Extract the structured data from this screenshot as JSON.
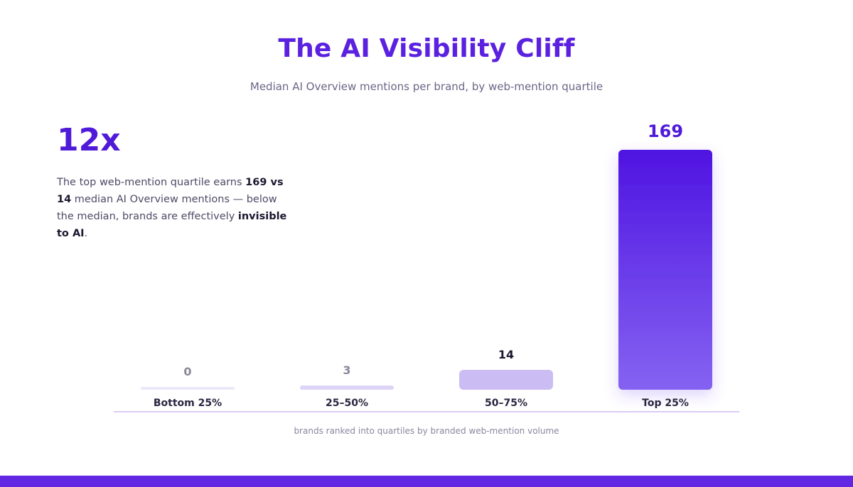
{
  "colors": {
    "accent": "#5b21e0",
    "bottom_band": "#6127e3",
    "bar_low": "#ece8f9",
    "bar_q2": "#ddd4f7",
    "bar_q3": "#cbbdf3",
    "bar_top_start": "#4f14e2",
    "bar_top_end": "#8563f1"
  },
  "header": {
    "title": "The AI Visibility Cliff",
    "subtitle": "Median AI Overview mentions per brand, by web-mention quartile"
  },
  "callout": {
    "big_stat": "12x",
    "text_1": "The top web-mention quartile earns ",
    "bold_1": "169 vs 14",
    "text_2": " median AI Overview mentions — below the median, brands are effectively ",
    "bold_2": "invisible to AI",
    "text_3": "."
  },
  "chart_data": {
    "type": "bar",
    "categories": [
      "Bottom 25%",
      "25–50%",
      "50–75%",
      "Top 25%"
    ],
    "values": [
      0,
      3,
      14,
      169
    ],
    "title": "The AI Visibility Cliff",
    "subtitle": "Median AI Overview mentions per brand, by web-mention quartile",
    "xlabel": "brands ranked into quartiles by branded web-mention volume",
    "ylabel": "",
    "ylim": [
      0,
      169
    ],
    "grid": false,
    "legend": "none"
  }
}
